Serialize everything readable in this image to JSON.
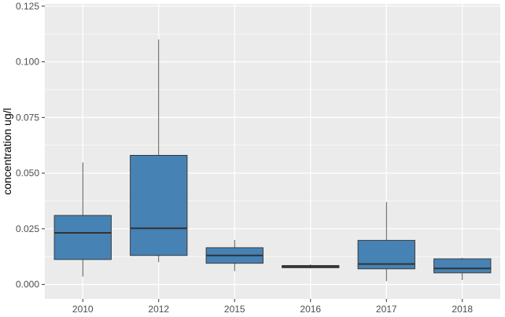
{
  "chart_data": {
    "type": "box",
    "title": "",
    "xlabel": "",
    "ylabel": "concentration ug/l",
    "ylim": [
      -0.0065,
      0.126
    ],
    "yticks": [
      0.0,
      0.025,
      0.05,
      0.075,
      0.1,
      0.125
    ],
    "ytick_labels": [
      "0.000",
      "0.025",
      "0.050",
      "0.075",
      "0.100",
      "0.125"
    ],
    "categories": [
      "2010",
      "2012",
      "2015",
      "2016",
      "2017",
      "2018"
    ],
    "boxes": [
      {
        "category": "2010",
        "whisker_low": 0.0035,
        "q1": 0.0112,
        "median": 0.0232,
        "q3": 0.031,
        "whisker_high": 0.0548
      },
      {
        "category": "2012",
        "whisker_low": 0.01,
        "q1": 0.013,
        "median": 0.0252,
        "q3": 0.058,
        "whisker_high": 0.11
      },
      {
        "category": "2015",
        "whisker_low": 0.006,
        "q1": 0.0095,
        "median": 0.013,
        "q3": 0.0165,
        "whisker_high": 0.02
      },
      {
        "category": "2016",
        "whisker_low": 0.0072,
        "q1": 0.0075,
        "median": 0.008,
        "q3": 0.0085,
        "whisker_high": 0.009
      },
      {
        "category": "2017",
        "whisker_low": 0.0015,
        "q1": 0.007,
        "median": 0.0092,
        "q3": 0.0198,
        "whisker_high": 0.037
      },
      {
        "category": "2018",
        "whisker_low": 0.002,
        "q1": 0.0052,
        "median": 0.0072,
        "q3": 0.0115,
        "whisker_high": 0.012
      }
    ],
    "grid": true,
    "legend": "none",
    "colors": {
      "box_fill": "#4682b4",
      "box_line": "#333333",
      "panel": "#ebebeb",
      "grid": "#ffffff"
    }
  }
}
